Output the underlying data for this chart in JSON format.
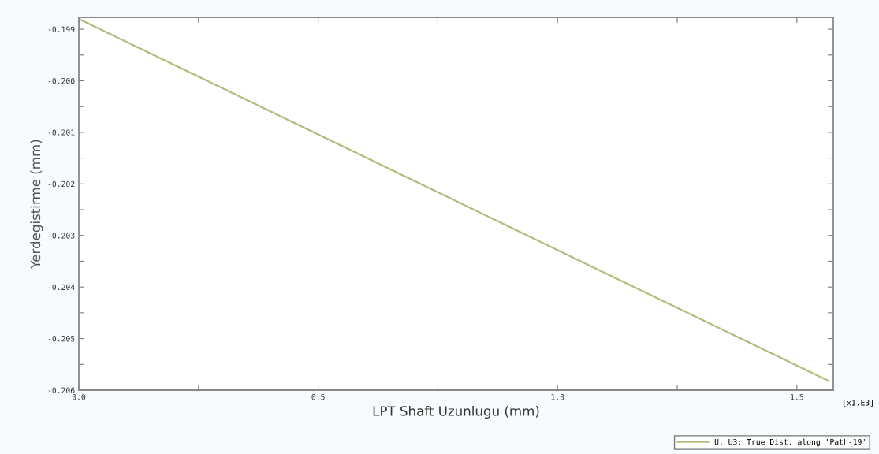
{
  "chart_data": {
    "type": "line",
    "xlabel": "LPT Shaft Uzunlugu (mm)",
    "ylabel": "Yerdegistirme (mm)",
    "x": [
      0,
      1.566
    ],
    "series": [
      {
        "name": "U, U3: True Dist. along 'Path-19'",
        "color": "#b8b97c",
        "values": [
          -0.1988,
          -0.20582
        ]
      }
    ],
    "xlim": [
      0,
      1.576
    ],
    "xticks": [
      {
        "value": 0,
        "label": "0.0"
      },
      {
        "value": 0.25,
        "label": null
      },
      {
        "value": 0.5,
        "label": "0.5"
      },
      {
        "value": 0.75,
        "label": null
      },
      {
        "value": 1.0,
        "label": "1.0"
      },
      {
        "value": 1.25,
        "label": null
      },
      {
        "value": 1.5,
        "label": "1.5"
      }
    ],
    "ylim": [
      -0.206,
      -0.19877
    ],
    "yticks": [
      {
        "value": -0.199,
        "label": "-0.199"
      },
      {
        "value": -0.1995,
        "label": null
      },
      {
        "value": -0.2,
        "label": "-0.200"
      },
      {
        "value": -0.2005,
        "label": null
      },
      {
        "value": -0.201,
        "label": "-0.201"
      },
      {
        "value": -0.2015,
        "label": null
      },
      {
        "value": -0.202,
        "label": "-0.202"
      },
      {
        "value": -0.2025,
        "label": null
      },
      {
        "value": -0.203,
        "label": "-0.203"
      },
      {
        "value": -0.2035,
        "label": null
      },
      {
        "value": -0.204,
        "label": "-0.204"
      },
      {
        "value": -0.2045,
        "label": null
      },
      {
        "value": -0.205,
        "label": "-0.205"
      },
      {
        "value": -0.2055,
        "label": null
      },
      {
        "value": -0.206,
        "label": "-0.206"
      }
    ],
    "annotations": [
      "[x1.E3]"
    ],
    "legend": "bottom right",
    "grid": false,
    "marker": "none",
    "line_style": "solid"
  }
}
